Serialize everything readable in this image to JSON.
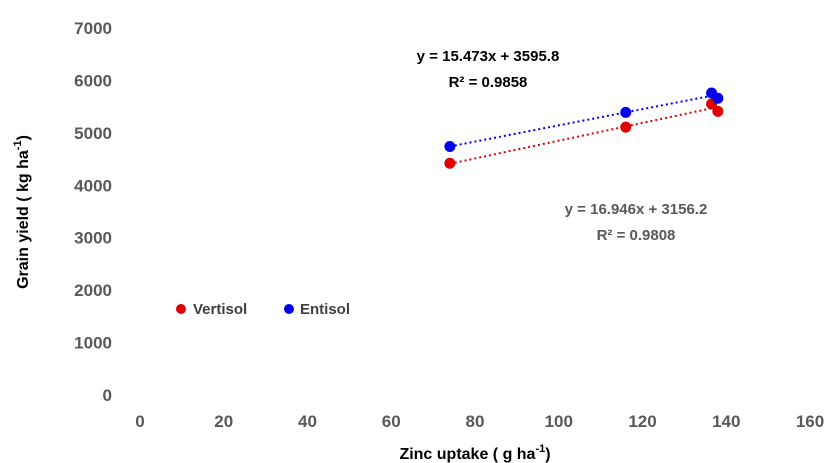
{
  "chart_data": {
    "type": "scatter",
    "xlabel": "Zinc uptake ( g ha",
    "xlabel_sup": "-1",
    "xlabel_end": ")",
    "ylabel": "Grain yield ( kg ha",
    "ylabel_sup": "-1",
    "ylabel_end": ")",
    "xlim": [
      0,
      160
    ],
    "ylim": [
      0,
      7000
    ],
    "x_ticks": [
      "0",
      "20",
      "40",
      "60",
      "80",
      "100",
      "120",
      "140",
      "160"
    ],
    "y_ticks": [
      "0",
      "1000",
      "2000",
      "3000",
      "4000",
      "5000",
      "6000",
      "7000"
    ],
    "grid": false,
    "legend_position": "left-middle",
    "series": [
      {
        "name": "Vertisol",
        "color": "#e00000",
        "points": [
          [
            74,
            4420
          ],
          [
            116,
            5110
          ],
          [
            136.5,
            5550
          ],
          [
            138,
            5410
          ]
        ],
        "trendline": {
          "slope": 16.946,
          "intercept": 3156.2,
          "x_range": [
            74,
            138
          ]
        },
        "equation": "y = 16.946x + 3156.2",
        "r2_label": "R² = 0.9808",
        "equation_color": "#595959"
      },
      {
        "name": "Entisol",
        "color": "#0000ee",
        "points": [
          [
            74,
            4740
          ],
          [
            116,
            5390
          ],
          [
            136.5,
            5760
          ],
          [
            138,
            5660
          ]
        ],
        "trendline": {
          "slope": 15.473,
          "intercept": 3595.8,
          "x_range": [
            74,
            138
          ]
        },
        "equation": "y = 15.473x + 3595.8",
        "r2_label": "R² = 0.9858",
        "equation_color": "#000000"
      }
    ]
  }
}
